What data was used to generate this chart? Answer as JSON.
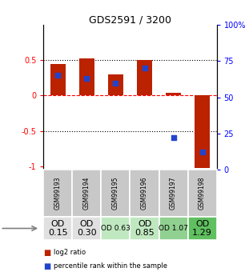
{
  "title": "GDS2591 / 3200",
  "samples": [
    "GSM99193",
    "GSM99194",
    "GSM99195",
    "GSM99196",
    "GSM99197",
    "GSM99198"
  ],
  "log2_ratio": [
    0.45,
    0.52,
    0.3,
    0.5,
    0.04,
    -1.02
  ],
  "percentile_rank": [
    65,
    63,
    60,
    70,
    22,
    12
  ],
  "bar_color": "#bb2200",
  "dot_color": "#2244cc",
  "ylim_left": [
    -1.05,
    1.0
  ],
  "ylim_right": [
    0,
    100
  ],
  "yticks_left": [
    -1,
    -0.5,
    0,
    0.5
  ],
  "ytick_labels_left": [
    "-1",
    "-0.5",
    "0",
    "0.5"
  ],
  "yticks_right": [
    0,
    25,
    50,
    75,
    100
  ],
  "ytick_labels_right": [
    "0",
    "25",
    "50",
    "75",
    "100%"
  ],
  "hlines_dotted": [
    0.5,
    -0.5
  ],
  "hline_red": 0.0,
  "age_labels": [
    "OD\n0.15",
    "OD\n0.30",
    "OD 0.63",
    "OD\n0.85",
    "OD 1.07",
    "OD\n1.29"
  ],
  "age_font_sizes": [
    8,
    8,
    6.5,
    8,
    6.5,
    8
  ],
  "age_bg_colors": [
    "#e0e0e0",
    "#e0e0e0",
    "#c0e8c0",
    "#c0e8c0",
    "#90d090",
    "#60c060"
  ],
  "gsm_bg_color": "#c8c8c8",
  "legend_red_label": "log2 ratio",
  "legend_blue_label": "percentile rank within the sample",
  "bar_width": 0.55
}
